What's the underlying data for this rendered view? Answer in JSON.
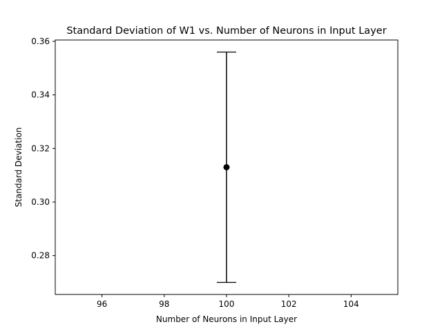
{
  "chart_data": {
    "type": "scatter",
    "title": "Standard Deviation of W1 vs. Number of Neurons in Input Layer",
    "xlabel": "Number of Neurons in Input Layer",
    "ylabel": "Standard Deviation",
    "xlim": [
      94.5,
      105.5
    ],
    "ylim": [
      0.2655,
      0.3605
    ],
    "xticks": [
      96,
      98,
      100,
      102,
      104
    ],
    "xtick_labels": [
      "96",
      "98",
      "100",
      "102",
      "104"
    ],
    "yticks": [
      0.28,
      0.3,
      0.32,
      0.34,
      0.36
    ],
    "ytick_labels": [
      "0.28",
      "0.30",
      "0.32",
      "0.34",
      "0.36"
    ],
    "grid": false,
    "series": [
      {
        "points": [
          {
            "x": 100,
            "y": 0.313,
            "yerr_low": 0.27,
            "yerr_high": 0.356
          }
        ],
        "color": "#000000",
        "marker": "circle"
      }
    ]
  }
}
